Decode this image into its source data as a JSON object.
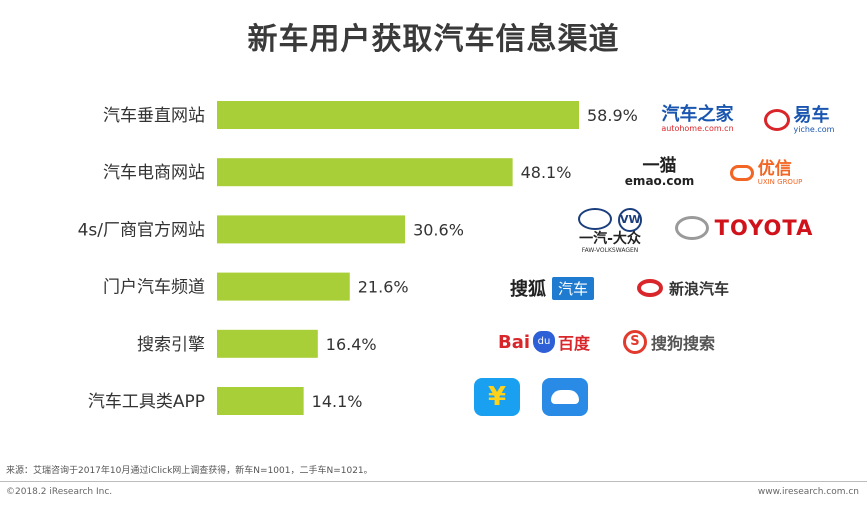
{
  "title": "新车用户获取汽车信息渠道",
  "chart_data": {
    "type": "bar",
    "orientation": "horizontal",
    "title": "新车用户获取汽车信息渠道",
    "categories": [
      "汽车垂直网站",
      "汽车电商网站",
      "4s/厂商官方网站",
      "门户汽车频道",
      "搜索引擎",
      "汽车工具类APP"
    ],
    "values": [
      58.9,
      48.1,
      30.6,
      21.6,
      16.4,
      14.1
    ],
    "value_labels": [
      "58.9%",
      "48.1%",
      "30.6%",
      "21.6%",
      "16.4%",
      "14.1%"
    ],
    "unit": "%",
    "bar_color": "#a9cf38",
    "grid": false,
    "legend": "none"
  },
  "logos": [
    {
      "name": "autohome-logo",
      "text": "汽车之家",
      "sub": "autohome.com.cn"
    },
    {
      "name": "yiche-logo",
      "text": "易车",
      "sub": "yiche.com"
    },
    {
      "name": "emao-logo",
      "text": "一猫",
      "sub": "emao.com"
    },
    {
      "name": "uxin-logo",
      "text": "优信",
      "sub": "UXIN GROUP"
    },
    {
      "name": "faw-vw-logo",
      "text": "一汽-大众",
      "sub": "FAW-VOLKSWAGEN"
    },
    {
      "name": "toyota-logo",
      "text": "TOYOTA"
    },
    {
      "name": "sohu-auto-logo",
      "text": "搜狐",
      "sub": "汽车"
    },
    {
      "name": "sina-auto-logo",
      "text": "新浪汽车"
    },
    {
      "name": "baidu-logo",
      "text": "Bai",
      "sub": "百度"
    },
    {
      "name": "sogou-logo",
      "text": "搜狗搜索"
    }
  ],
  "footer": {
    "source": "来源：艾瑞咨询于2017年10月通过iClick网上调查获得，新车N=1001，二手车N=1021。",
    "copyright": "©2018.2 iResearch Inc.",
    "website": "www.iresearch.com.cn"
  }
}
